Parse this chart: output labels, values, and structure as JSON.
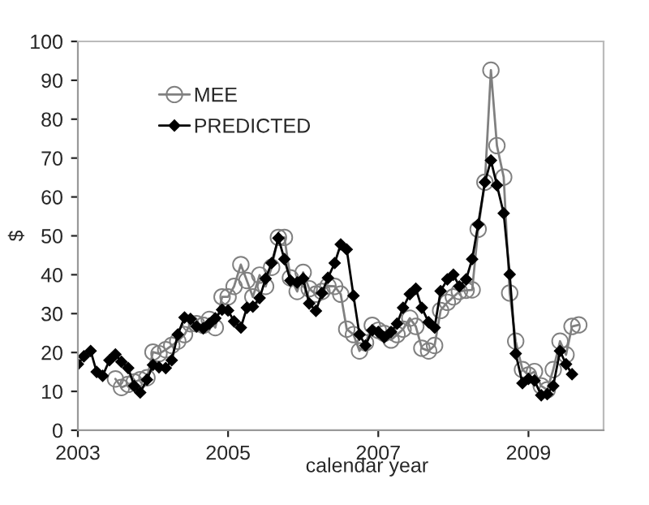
{
  "chart_data": {
    "type": "line",
    "xlabel": "calendar year",
    "ylabel": "$",
    "xlim": [
      2003,
      2010
    ],
    "xticks": [
      2003,
      2005,
      2007,
      2009
    ],
    "ylim": [
      0,
      100
    ],
    "yticks": [
      0,
      10,
      20,
      30,
      40,
      50,
      60,
      70,
      80,
      90,
      100
    ],
    "grid": false,
    "legend": "top left",
    "line_style": "solid",
    "series": [
      {
        "name": "MEE",
        "color": "#808080",
        "marker": "circle",
        "x": [
          2003.5,
          2003.58,
          2003.67,
          2003.75,
          2003.83,
          2003.92,
          2004,
          2004.08,
          2004.17,
          2004.25,
          2004.33,
          2004.42,
          2004.5,
          2004.58,
          2004.67,
          2004.75,
          2004.83,
          2004.92,
          2005,
          2005.08,
          2005.17,
          2005.25,
          2005.33,
          2005.42,
          2005.5,
          2005.58,
          2005.67,
          2005.75,
          2005.83,
          2005.92,
          2006,
          2006.08,
          2006.17,
          2006.25,
          2006.33,
          2006.42,
          2006.5,
          2006.58,
          2006.67,
          2006.75,
          2006.83,
          2006.92,
          2007,
          2007.08,
          2007.17,
          2007.25,
          2007.33,
          2007.42,
          2007.5,
          2007.58,
          2007.67,
          2007.75,
          2007.83,
          2007.92,
          2008,
          2008.08,
          2008.17,
          2008.25,
          2008.33,
          2008.42,
          2008.5,
          2008.58,
          2008.67,
          2008.75,
          2008.83,
          2008.92,
          2009,
          2009.08,
          2009.17,
          2009.25,
          2009.33,
          2009.42,
          2009.5,
          2009.58,
          2009.67
        ],
        "values": [
          13.2,
          11,
          11.8,
          12.4,
          13,
          13.5,
          20.1,
          19.7,
          20.7,
          21.8,
          22.9,
          24.6,
          27.4,
          27.4,
          27,
          28.5,
          26.4,
          34.3,
          34.3,
          37,
          42.6,
          38.5,
          34.3,
          39.9,
          37,
          41.9,
          49.6,
          49.6,
          39.2,
          35.7,
          40.6,
          36.4,
          35,
          35.7,
          37.1,
          37,
          35,
          26,
          24.6,
          20.4,
          22.5,
          27,
          25.7,
          24.9,
          23.2,
          24.6,
          26,
          28.8,
          26.7,
          21.1,
          20.4,
          21.8,
          30.8,
          32.9,
          34.3,
          35.7,
          36,
          36.1,
          51.7,
          63.8,
          92.6,
          73.2,
          65.1,
          35.3,
          22.9,
          15.6,
          14.2,
          15.1,
          11.4,
          10.4,
          15.6,
          22.9,
          19.4,
          26.7,
          27.1
        ]
      },
      {
        "name": "PREDICTED",
        "color": "#000000",
        "marker": "diamond",
        "x": [
          2003,
          2003.08,
          2003.17,
          2003.25,
          2003.33,
          2003.42,
          2003.5,
          2003.58,
          2003.67,
          2003.75,
          2003.83,
          2003.92,
          2004,
          2004.08,
          2004.17,
          2004.25,
          2004.33,
          2004.42,
          2004.5,
          2004.58,
          2004.67,
          2004.75,
          2004.83,
          2004.92,
          2005,
          2005.08,
          2005.17,
          2005.25,
          2005.33,
          2005.42,
          2005.5,
          2005.58,
          2005.67,
          2005.75,
          2005.83,
          2005.92,
          2006,
          2006.08,
          2006.17,
          2006.25,
          2006.33,
          2006.42,
          2006.5,
          2006.58,
          2006.67,
          2006.75,
          2006.83,
          2006.92,
          2007,
          2007.08,
          2007.17,
          2007.25,
          2007.33,
          2007.42,
          2007.5,
          2007.58,
          2007.67,
          2007.75,
          2007.83,
          2007.92,
          2008,
          2008.08,
          2008.17,
          2008.25,
          2008.33,
          2008.42,
          2008.5,
          2008.58,
          2008.67,
          2008.75,
          2008.83,
          2008.92,
          2009,
          2009.08,
          2009.17,
          2009.25,
          2009.33,
          2009.42,
          2009.5,
          2009.58
        ],
        "values": [
          17,
          19,
          20.4,
          15,
          14,
          18,
          19.5,
          17.6,
          16,
          11.4,
          9.7,
          13,
          16.8,
          16.2,
          16,
          18,
          24.6,
          29,
          28.6,
          26.7,
          26.2,
          27.4,
          28.8,
          31,
          30.8,
          28,
          26.4,
          31.5,
          31.8,
          34,
          39,
          43,
          49.4,
          44,
          38.5,
          38,
          39,
          32.6,
          30.7,
          35.3,
          39.2,
          43,
          47.8,
          46.5,
          34.6,
          24.6,
          21.8,
          25.7,
          25.3,
          23.9,
          25.3,
          27.4,
          31.5,
          35,
          36.4,
          31.5,
          27.8,
          26.4,
          35.8,
          38.8,
          40,
          37,
          38.8,
          44,
          52.9,
          63.8,
          69.4,
          63,
          55.8,
          40.1,
          19.7,
          12.1,
          13.2,
          12.8,
          9,
          9.3,
          11.4,
          20.4,
          17,
          14.4
        ]
      }
    ]
  }
}
